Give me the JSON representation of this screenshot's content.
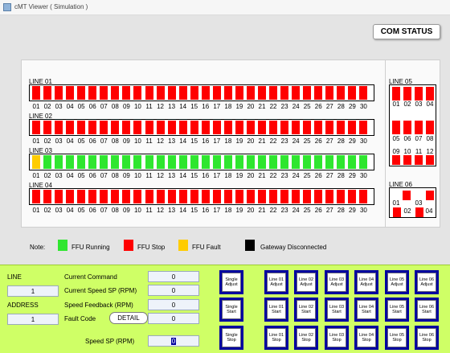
{
  "window": {
    "title": "cMT Viewer ( Simulation )"
  },
  "com_status": "COM STATUS",
  "line_labels": [
    "LINE 01",
    "LINE 02",
    "LINE 03",
    "LINE 04"
  ],
  "ffu_numbers": [
    "01",
    "02",
    "03",
    "04",
    "05",
    "06",
    "07",
    "08",
    "09",
    "10",
    "11",
    "12",
    "13",
    "14",
    "15",
    "16",
    "17",
    "18",
    "19",
    "20",
    "21",
    "22",
    "23",
    "24",
    "25",
    "26",
    "27",
    "28",
    "29",
    "30"
  ],
  "line_states": [
    "SSSSSSSSSSSSSSSSSSSSSSSSSSSSSS",
    "SSSSSSSSSSSSSSSSSSSSSSSSSSSSSS",
    "FRRRRRRRRRRRRRRRRRRRRRRRRRRRRR",
    "SSSSSSSSSSSSSSSSSSSSSSSSSSSSSS"
  ],
  "line05": {
    "label": "LINE 05",
    "row1_numbers": [
      "01",
      "02",
      "03",
      "04"
    ],
    "row2_numbers": [
      "05",
      "06",
      "07",
      "08"
    ],
    "row3_numbers": [
      "09",
      "10",
      "11",
      "12"
    ]
  },
  "line06": {
    "label": "LINE 06",
    "numbers": [
      "01",
      "02",
      "03",
      "04"
    ]
  },
  "legend": {
    "note": "Note:",
    "running": "FFU Running",
    "stop": "FFU Stop",
    "fault": "FFU Fault",
    "gateway": "Gateway Disconnected",
    "colors": {
      "running": "#2fe62f",
      "stop": "#ff0000",
      "fault": "#ffcc00",
      "gateway": "#000000"
    }
  },
  "controls": {
    "line_label": "LINE",
    "line_value": "1",
    "address_label": "ADDRESS",
    "address_value": "1",
    "current_command_label": "Current Command",
    "current_command_value": "0",
    "current_speed_label": "Current Speed SP (RPM)",
    "current_speed_value": "0",
    "speed_feedback_label": "Speed Feedback (RPM)",
    "speed_feedback_value": "0",
    "fault_code_label": "Fault Code",
    "fault_code_value": "0",
    "detail_label": "DETAIL",
    "speed_sp_label": "Speed SP (RPM)",
    "speed_sp_value": "0"
  },
  "buttons": {
    "row1": [
      "Single\nAdjust",
      "Line 01\nAdjust",
      "Line 02\nAdjust",
      "Line 03\nAdjust",
      "Line 04\nAdjust",
      "Line 05\nAdjust",
      "Line 06\nAdjust"
    ],
    "row2": [
      "Single\nStart",
      "Line 01\nStart",
      "Line 02\nStart",
      "Line 03\nStart",
      "Line 04\nStart",
      "Line 05\nStart",
      "Line 06\nStart"
    ],
    "row3": [
      "Single\nStop",
      "Line 01\nStop",
      "Line 02\nStop",
      "Line 03\nStop",
      "Line 04\nStop",
      "Line 05\nStop",
      "Line 06\nStop"
    ]
  }
}
